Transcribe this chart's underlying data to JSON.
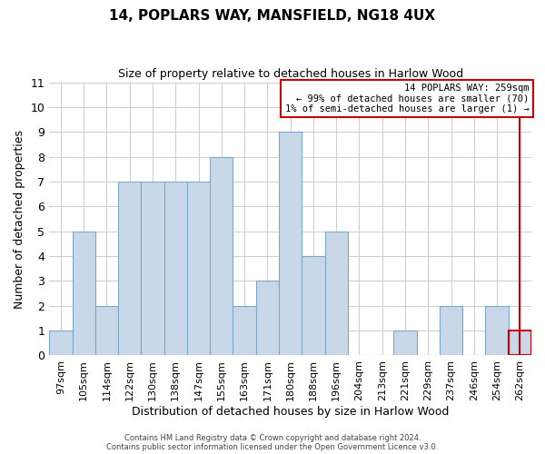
{
  "title": "14, POPLARS WAY, MANSFIELD, NG18 4UX",
  "subtitle": "Size of property relative to detached houses in Harlow Wood",
  "xlabel": "Distribution of detached houses by size in Harlow Wood",
  "ylabel": "Number of detached properties",
  "bin_labels": [
    "97sqm",
    "105sqm",
    "114sqm",
    "122sqm",
    "130sqm",
    "138sqm",
    "147sqm",
    "155sqm",
    "163sqm",
    "171sqm",
    "180sqm",
    "188sqm",
    "196sqm",
    "204sqm",
    "213sqm",
    "221sqm",
    "229sqm",
    "237sqm",
    "246sqm",
    "254sqm",
    "262sqm"
  ],
  "bar_heights": [
    1,
    5,
    2,
    7,
    7,
    7,
    7,
    8,
    2,
    3,
    9,
    4,
    5,
    0,
    0,
    1,
    0,
    2,
    0,
    2,
    1
  ],
  "bar_color": "#c8d8e8",
  "bar_edge_color": "#7aaac8",
  "highlight_bar_index": 20,
  "highlight_bar_color": "#c8d8e8",
  "highlight_bar_edge_color": "#cc0000",
  "red_line_x": 20.0,
  "ylim": [
    0,
    11
  ],
  "yticks": [
    0,
    1,
    2,
    3,
    4,
    5,
    6,
    7,
    8,
    9,
    10,
    11
  ],
  "grid_color": "#cccccc",
  "background_color": "#ffffff",
  "annotation_box_edge_color": "#cc0000",
  "annotation_title": "14 POPLARS WAY: 259sqm",
  "annotation_line1": "← 99% of detached houses are smaller (70)",
  "annotation_line2": "1% of semi-detached houses are larger (1) →",
  "footer_line1": "Contains HM Land Registry data © Crown copyright and database right 2024.",
  "footer_line2": "Contains public sector information licensed under the Open Government Licence v3.0."
}
